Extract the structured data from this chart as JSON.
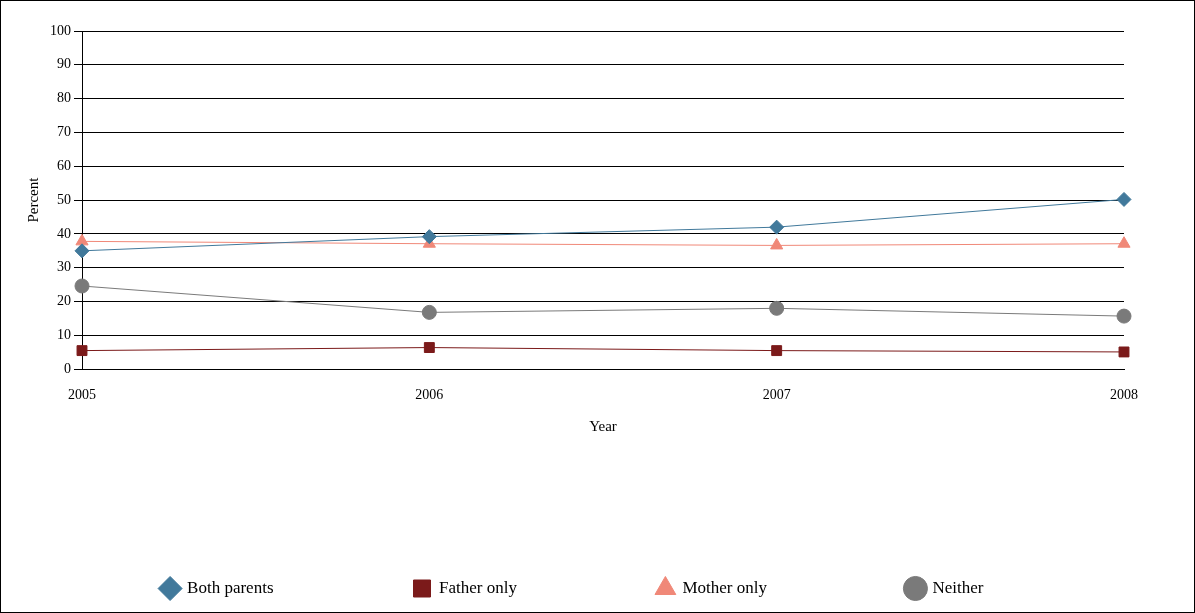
{
  "chart_data": {
    "type": "line",
    "xlabel": "Year",
    "ylabel": "Percent",
    "categories": [
      "2005",
      "2006",
      "2007",
      "2008"
    ],
    "series": [
      {
        "name": "Both parents",
        "color": "#41799b",
        "marker": "diamond",
        "values": [
          35,
          39.2,
          42,
          50.2
        ]
      },
      {
        "name": "Father only",
        "color": "#7b1a1a",
        "marker": "square",
        "values": [
          5.5,
          6.4,
          5.5,
          5.1
        ]
      },
      {
        "name": "Mother only",
        "color": "#f08878",
        "marker": "triangle",
        "values": [
          37.8,
          37.1,
          36.6,
          37.1
        ]
      },
      {
        "name": "Neither",
        "color": "#7a7a7a",
        "marker": "circle",
        "values": [
          24.6,
          16.8,
          18,
          15.7
        ]
      }
    ],
    "ylim": [
      0,
      100
    ],
    "yticks": [
      0,
      10,
      20,
      30,
      40,
      50,
      60,
      70,
      80,
      90,
      100
    ],
    "grid": "y",
    "legend": "bottom"
  }
}
